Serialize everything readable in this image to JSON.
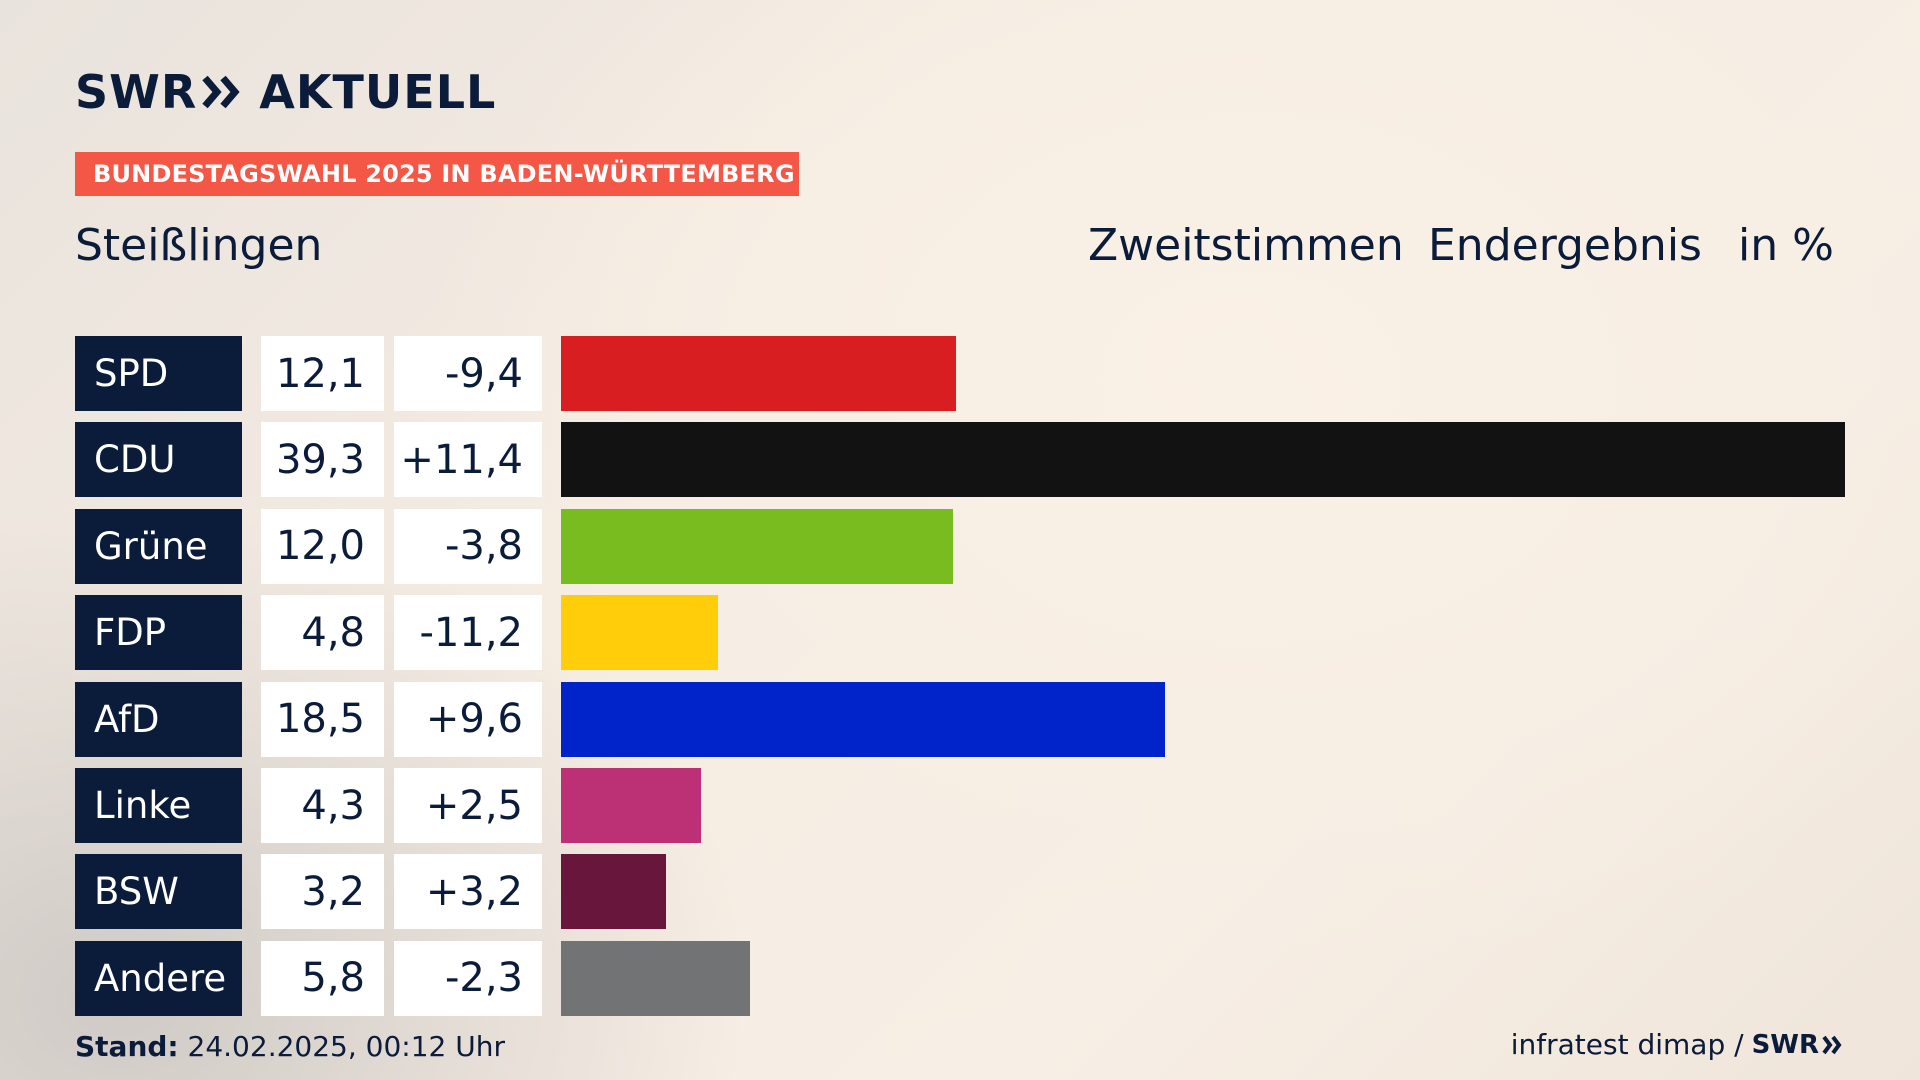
{
  "brand": {
    "logo_swr": "SWR",
    "logo_aktuell": "AKTUELL"
  },
  "banner": "BUNDESTAGSWAHL 2025 IN BADEN-WÜRTTEMBERG",
  "place": "Steißlingen",
  "header": {
    "type": "Zweitstimmen",
    "status": "Endergebnis",
    "unit": "in %"
  },
  "chart_data": {
    "type": "bar",
    "orientation": "horizontal",
    "categories": [
      "SPD",
      "CDU",
      "Grüne",
      "FDP",
      "AfD",
      "Linke",
      "BSW",
      "Andere"
    ],
    "values": [
      12.1,
      39.3,
      12.0,
      4.8,
      18.5,
      4.3,
      3.2,
      5.8
    ],
    "labels": [
      "12,1",
      "39,3",
      "12,0",
      "4,8",
      "18,5",
      "4,3",
      "3,2",
      "5,8"
    ],
    "changes": [
      -9.4,
      11.4,
      -3.8,
      -11.2,
      9.6,
      2.5,
      3.2,
      -2.3
    ],
    "change_labels": [
      "-9,4",
      "+11,4",
      "-3,8",
      "-11,2",
      "+9,6",
      "+2,5",
      "+3,2",
      "-2,3"
    ],
    "colors": [
      "#d81e20",
      "#121212",
      "#79bc1f",
      "#ffcd0a",
      "#0024c9",
      "#bc3076",
      "#68163c",
      "#727375"
    ],
    "xlim": [
      0,
      39.3
    ]
  },
  "footer": {
    "stand_label": "Stand:",
    "stand_value": "24.02.2025, 00:12 Uhr",
    "source": "infratest dimap /",
    "source_brand": "SWR"
  },
  "colors": {
    "navy": "#0b1b3a",
    "banner": "#f45745"
  }
}
